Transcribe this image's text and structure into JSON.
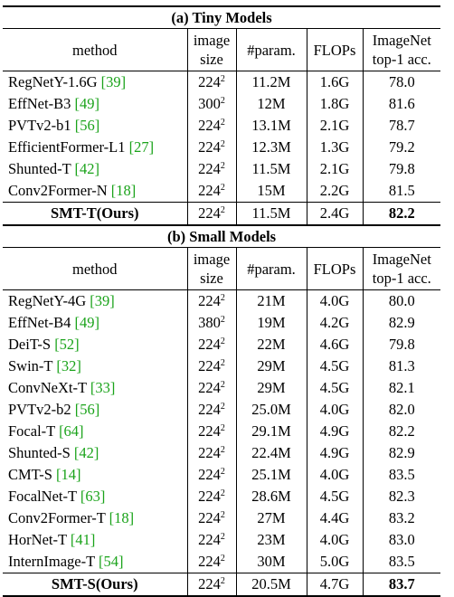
{
  "sections": [
    {
      "title": "(a) Tiny Models",
      "headers": {
        "method": "method",
        "size_line1": "image",
        "size_line2": "size",
        "params": "#param.",
        "flops": "FLOPs",
        "acc_line1": "ImageNet",
        "acc_line2": "top-1 acc."
      },
      "rows": [
        {
          "name": "RegNetY-1.6G",
          "cite": "[39]",
          "size_base": "224",
          "size_exp": "2",
          "params": "11.2M",
          "flops": "1.6G",
          "acc": "78.0"
        },
        {
          "name": "EffNet-B3",
          "cite": "[49]",
          "size_base": "300",
          "size_exp": "2",
          "params": "12M",
          "flops": "1.8G",
          "acc": "81.6"
        },
        {
          "name": "PVTv2-b1",
          "cite": "[56]",
          "size_base": "224",
          "size_exp": "2",
          "params": "13.1M",
          "flops": "2.1G",
          "acc": "78.7"
        },
        {
          "name": "EfficientFormer-L1",
          "cite": "[27]",
          "size_base": "224",
          "size_exp": "2",
          "params": "12.3M",
          "flops": "1.3G",
          "acc": "79.2"
        },
        {
          "name": "Shunted-T",
          "cite": "[42]",
          "size_base": "224",
          "size_exp": "2",
          "params": "11.5M",
          "flops": "2.1G",
          "acc": "79.8"
        },
        {
          "name": "Conv2Former-N",
          "cite": "[18]",
          "size_base": "224",
          "size_exp": "2",
          "params": "15M",
          "flops": "2.2G",
          "acc": "81.5"
        }
      ],
      "ours": {
        "name": "SMT-T(Ours)",
        "size_base": "224",
        "size_exp": "2",
        "params": "11.5M",
        "flops": "2.4G",
        "acc": "82.2"
      }
    },
    {
      "title": "(b) Small Models",
      "headers": {
        "method": "method",
        "size_line1": "image",
        "size_line2": "size",
        "params": "#param.",
        "flops": "FLOPs",
        "acc_line1": "ImageNet",
        "acc_line2": "top-1 acc."
      },
      "rows": [
        {
          "name": "RegNetY-4G",
          "cite": "[39]",
          "size_base": "224",
          "size_exp": "2",
          "params": "21M",
          "flops": "4.0G",
          "acc": "80.0"
        },
        {
          "name": "EffNet-B4",
          "cite": "[49]",
          "size_base": "380",
          "size_exp": "2",
          "params": "19M",
          "flops": "4.2G",
          "acc": "82.9"
        },
        {
          "name": "DeiT-S",
          "cite": "[52]",
          "size_base": "224",
          "size_exp": "2",
          "params": "22M",
          "flops": "4.6G",
          "acc": "79.8"
        },
        {
          "name": "Swin-T",
          "cite": "[32]",
          "size_base": "224",
          "size_exp": "2",
          "params": "29M",
          "flops": "4.5G",
          "acc": "81.3"
        },
        {
          "name": "ConvNeXt-T",
          "cite": "[33]",
          "size_base": "224",
          "size_exp": "2",
          "params": "29M",
          "flops": "4.5G",
          "acc": "82.1"
        },
        {
          "name": "PVTv2-b2",
          "cite": "[56]",
          "size_base": "224",
          "size_exp": "2",
          "params": "25.0M",
          "flops": "4.0G",
          "acc": "82.0"
        },
        {
          "name": "Focal-T",
          "cite": "[64]",
          "size_base": "224",
          "size_exp": "2",
          "params": "29.1M",
          "flops": "4.9G",
          "acc": "82.2"
        },
        {
          "name": "Shunted-S",
          "cite": "[42]",
          "size_base": "224",
          "size_exp": "2",
          "params": "22.4M",
          "flops": "4.9G",
          "acc": "82.9"
        },
        {
          "name": "CMT-S",
          "cite": "[14]",
          "size_base": "224",
          "size_exp": "2",
          "params": "25.1M",
          "flops": "4.0G",
          "acc": "83.5"
        },
        {
          "name": "FocalNet-T",
          "cite": "[63]",
          "size_base": "224",
          "size_exp": "2",
          "params": "28.6M",
          "flops": "4.5G",
          "acc": "82.3"
        },
        {
          "name": "Conv2Former-T",
          "cite": "[18]",
          "size_base": "224",
          "size_exp": "2",
          "params": "27M",
          "flops": "4.4G",
          "acc": "83.2"
        },
        {
          "name": "HorNet-T",
          "cite": "[41]",
          "size_base": "224",
          "size_exp": "2",
          "params": "23M",
          "flops": "4.0G",
          "acc": "83.0"
        },
        {
          "name": "InternImage-T",
          "cite": "[54]",
          "size_base": "224",
          "size_exp": "2",
          "params": "30M",
          "flops": "5.0G",
          "acc": "83.5"
        }
      ],
      "ours": {
        "name": "SMT-S(Ours)",
        "size_base": "224",
        "size_exp": "2",
        "params": "20.5M",
        "flops": "4.7G",
        "acc": "83.7"
      }
    }
  ],
  "colors": {
    "citation": "#1aa31a",
    "rule": "#000000"
  }
}
